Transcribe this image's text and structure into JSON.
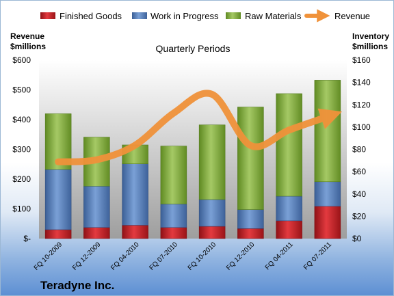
{
  "company_name": "Teradyne Inc.",
  "chart_data": {
    "type": "bar",
    "stacked": true,
    "title": "Quarterly Periods",
    "categories": [
      "FQ 10-2009",
      "FQ 12-2009",
      "FQ 04-2010",
      "FQ 07-2010",
      "FQ 10-2010",
      "FQ 12-2010",
      "FQ 04-2011",
      "FQ 07-2011"
    ],
    "left_axis": {
      "label_lines": [
        "Revenue",
        "$millions"
      ],
      "ticks": [
        "$-",
        "$100",
        "$200",
        "$300",
        "$400",
        "$500",
        "$600"
      ],
      "range": [
        0,
        600
      ]
    },
    "right_axis": {
      "label_lines": [
        "Inventory",
        "$millions"
      ],
      "ticks": [
        "$0",
        "$20",
        "$40",
        "$60",
        "$80",
        "$100",
        "$120",
        "$140",
        "$160"
      ],
      "range": [
        0,
        160
      ]
    },
    "series": [
      {
        "name": "Finished Goods",
        "axis": "right",
        "color": "#c0181e",
        "values": [
          8,
          10,
          12,
          10,
          11,
          9,
          16,
          29
        ]
      },
      {
        "name": "Work in Progress",
        "axis": "right",
        "color": "#4f79b7",
        "values": [
          54,
          37,
          55,
          21,
          24,
          17,
          22,
          22
        ]
      },
      {
        "name": "Raw Materials",
        "axis": "right",
        "color": "#7aa032",
        "values": [
          50,
          44,
          17,
          52,
          67,
          92,
          92,
          91
        ]
      },
      {
        "name": "Revenue",
        "axis": "left",
        "type": "line",
        "color": "#f0923a",
        "values": [
          258,
          265,
          314,
          422,
          485,
          313,
          365,
          410
        ]
      }
    ],
    "legend_position": "top",
    "grid": false
  }
}
